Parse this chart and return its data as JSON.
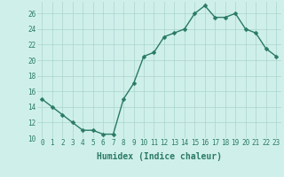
{
  "x": [
    0,
    1,
    2,
    3,
    4,
    5,
    6,
    7,
    8,
    9,
    10,
    11,
    12,
    13,
    14,
    15,
    16,
    17,
    18,
    19,
    20,
    21,
    22,
    23
  ],
  "y": [
    15,
    14,
    13,
    12,
    11,
    11,
    10.5,
    10.5,
    15,
    17,
    20.5,
    21,
    23,
    23.5,
    24,
    26,
    27,
    25.5,
    25.5,
    26,
    24,
    23.5,
    21.5,
    20.5
  ],
  "line_color": "#2a7a65",
  "marker_color": "#2a7a65",
  "bg_color": "#cff0ea",
  "grid_color": "#aad4cc",
  "xlabel": "Humidex (Indice chaleur)",
  "xlabel_fontsize": 7,
  "tick_fontsize": 5.5,
  "tick_color": "#2a7a65",
  "ylim": [
    10,
    27.5
  ],
  "yticks": [
    10,
    12,
    14,
    16,
    18,
    20,
    22,
    24,
    26
  ],
  "xlim": [
    -0.5,
    23.5
  ],
  "marker_size": 2.5,
  "line_width": 1.0
}
